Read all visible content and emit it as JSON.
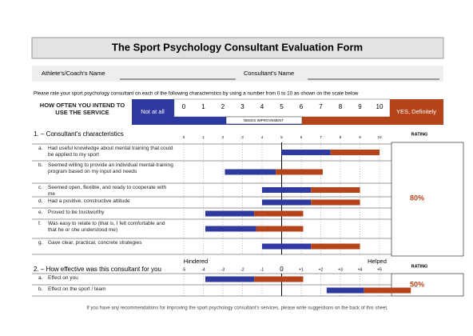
{
  "header": {
    "title": "The Sport Psychology Consultant Evaluation Form",
    "athlete_label": "Athlete's/Coach's Name",
    "consultant_label": "Consultant's Name"
  },
  "instruction": "Please rate your sport psychology consultant on each of the following characteristics by using a number from 0 to 10 as shown on the scale below",
  "scale": {
    "question": "HOW OFTEN YOU INTEND TO USE THE SERVICE",
    "low": "Not at all",
    "high": "YES, Definitely",
    "middle": "NEEDS IMPROVEMENT",
    "ticks": [
      0,
      1,
      2,
      3,
      4,
      5,
      6,
      7,
      8,
      9,
      10
    ]
  },
  "section1": {
    "title": "1. – Consultant's characteristics",
    "rating_label": "RATING",
    "rating": "80%",
    "items": [
      {
        "letter": "a.",
        "text": "Had useful knowledge about mental training that could be applied to my sport",
        "range": [
          5,
          7.5,
          10
        ]
      },
      {
        "letter": "b.",
        "text": "Seemed willing to provide an individual mental-training program based on my input and needs",
        "range": [
          2.1,
          4.7,
          7.1
        ]
      },
      {
        "letter": "c.",
        "text": "Seemed open, flexible, and ready to cooperate with me",
        "range": [
          4,
          6.5,
          9
        ]
      },
      {
        "letter": "d.",
        "text": "Had a positive, constructive attitude",
        "range": [
          4,
          6.5,
          9
        ]
      },
      {
        "letter": "e.",
        "text": "Proved to be trustworthy",
        "range": [
          1.1,
          3.6,
          6.1
        ]
      },
      {
        "letter": "f.",
        "text": "Was easy to relate to (that is, I felt comfortable and that he or she understood me)",
        "range": [
          1.1,
          3.7,
          6.1
        ]
      },
      {
        "letter": "g.",
        "text": "Gave clear, practical, concrete strategies",
        "range": [
          4,
          6.5,
          9
        ]
      }
    ]
  },
  "section2": {
    "title": "2. – How effective was this consultant for you",
    "low": "Hindered",
    "high": "Helped",
    "rating_label": "RATING",
    "rating": "50%",
    "ticks": [
      -5,
      -4,
      -3,
      -2,
      -1,
      0,
      {
        "value": 1,
        "label": "+1"
      },
      {
        "value": 2,
        "label": "+2"
      },
      {
        "value": 3,
        "label": "+3"
      },
      {
        "value": 4,
        "label": "+4"
      },
      {
        "value": 5,
        "label": "+5"
      }
    ],
    "items": [
      {
        "letter": "a.",
        "text": "Effect on you",
        "range": [
          -3.9,
          -1.4,
          1.1
        ]
      },
      {
        "letter": "b.",
        "text": "Effect on the sport / team",
        "range": [
          2.3,
          4.2,
          6.6
        ]
      }
    ]
  },
  "footer": "If you have any recommendations for improving the sport psychology consultant's services, please write suggestions on the back of this sheet."
}
